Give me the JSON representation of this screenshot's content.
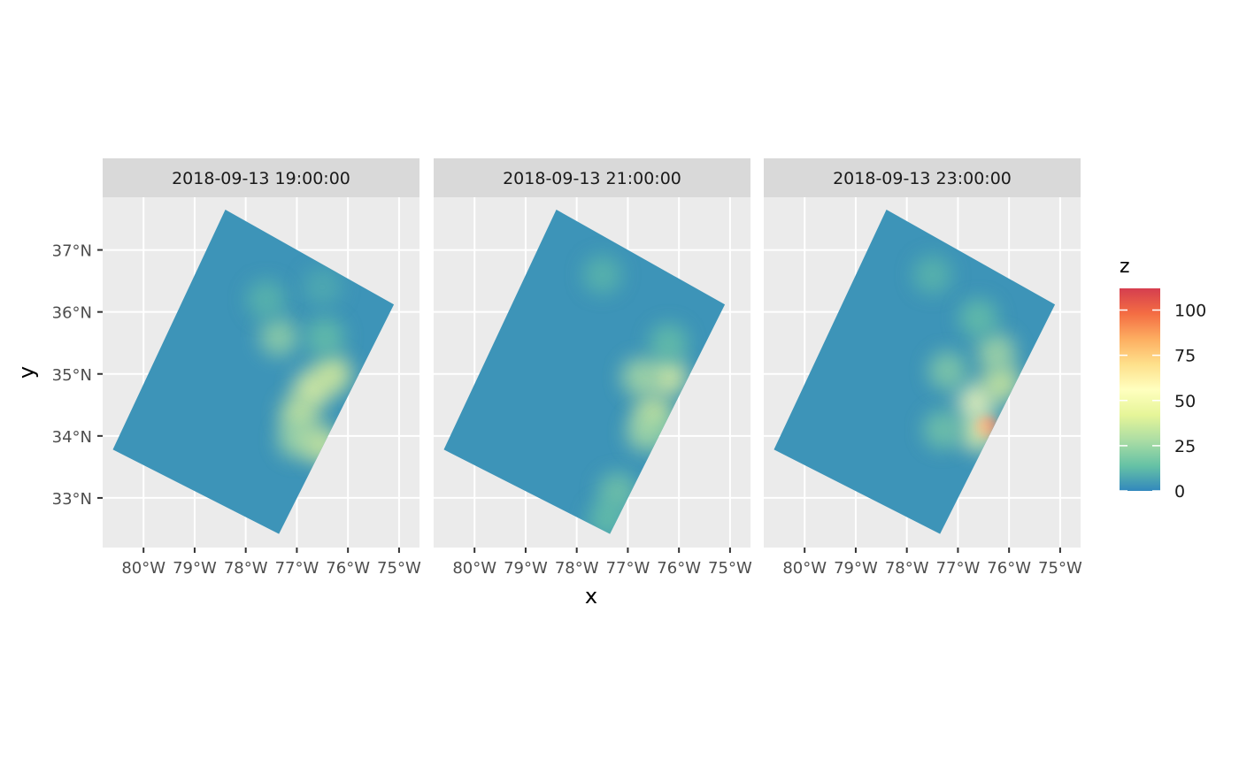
{
  "chart_data": {
    "type": "heatmap",
    "title": "",
    "xlabel": "x",
    "ylabel": "y",
    "xlim": [
      -80.8,
      -74.6
    ],
    "ylim": [
      32.2,
      37.85
    ],
    "x_ticks": [
      -80,
      -79,
      -78,
      -77,
      -76,
      -75
    ],
    "x_tick_labels": [
      "80°W",
      "79°W",
      "78°W",
      "77°W",
      "76°W",
      "75°W"
    ],
    "y_ticks": [
      33,
      34,
      35,
      36,
      37
    ],
    "y_tick_labels": [
      "33°N",
      "34°N",
      "35°N",
      "36°N",
      "37°N"
    ],
    "grid": true,
    "legend": {
      "title": "z",
      "position": "right",
      "breaks": [
        0,
        25,
        50,
        75,
        100
      ],
      "labels": [
        "0",
        "25",
        "50",
        "75",
        "100"
      ],
      "limits": [
        0,
        112
      ],
      "palette": [
        "#3288bd",
        "#66c2a5",
        "#abdda4",
        "#e6f598",
        "#ffffbf",
        "#fee08b",
        "#fdae61",
        "#f46d43",
        "#d53e4f"
      ]
    },
    "domain_corners": [
      {
        "x": -78.4,
        "y": 37.65
      },
      {
        "x": -75.1,
        "y": 36.12
      },
      {
        "x": -77.35,
        "y": 32.42
      },
      {
        "x": -80.6,
        "y": 33.78
      }
    ],
    "background_value": 3,
    "facets": [
      {
        "label": "2018-09-13 19:00:00",
        "features": [
          {
            "x": -76.7,
            "y": 34.75,
            "value": 45
          },
          {
            "x": -76.95,
            "y": 34.35,
            "value": 38
          },
          {
            "x": -77.0,
            "y": 33.95,
            "value": 28
          },
          {
            "x": -76.5,
            "y": 33.85,
            "value": 40
          },
          {
            "x": -76.3,
            "y": 35.0,
            "value": 42
          },
          {
            "x": -77.35,
            "y": 35.6,
            "value": 25
          },
          {
            "x": -76.45,
            "y": 35.6,
            "value": 15
          },
          {
            "x": -77.6,
            "y": 36.2,
            "value": 12
          },
          {
            "x": -76.5,
            "y": 36.4,
            "value": 9
          }
        ]
      },
      {
        "label": "2018-09-13 21:00:00",
        "features": [
          {
            "x": -76.2,
            "y": 34.95,
            "value": 45
          },
          {
            "x": -76.75,
            "y": 34.95,
            "value": 30
          },
          {
            "x": -76.5,
            "y": 34.35,
            "value": 40
          },
          {
            "x": -76.65,
            "y": 34.05,
            "value": 28
          },
          {
            "x": -76.05,
            "y": 33.95,
            "value": 22
          },
          {
            "x": -77.2,
            "y": 33.1,
            "value": 18
          },
          {
            "x": -77.4,
            "y": 32.65,
            "value": 15
          },
          {
            "x": -77.5,
            "y": 36.6,
            "value": 12
          },
          {
            "x": -76.2,
            "y": 35.5,
            "value": 15
          }
        ]
      },
      {
        "label": "2018-09-13 23:00:00",
        "features": [
          {
            "x": -76.45,
            "y": 34.15,
            "value": 110
          },
          {
            "x": -76.6,
            "y": 34.05,
            "value": 48
          },
          {
            "x": -76.65,
            "y": 34.55,
            "value": 55
          },
          {
            "x": -76.15,
            "y": 34.85,
            "value": 40
          },
          {
            "x": -76.25,
            "y": 35.35,
            "value": 30
          },
          {
            "x": -77.2,
            "y": 35.05,
            "value": 22
          },
          {
            "x": -77.3,
            "y": 34.1,
            "value": 18
          },
          {
            "x": -77.5,
            "y": 36.6,
            "value": 12
          },
          {
            "x": -76.6,
            "y": 35.9,
            "value": 15
          }
        ]
      }
    ]
  }
}
